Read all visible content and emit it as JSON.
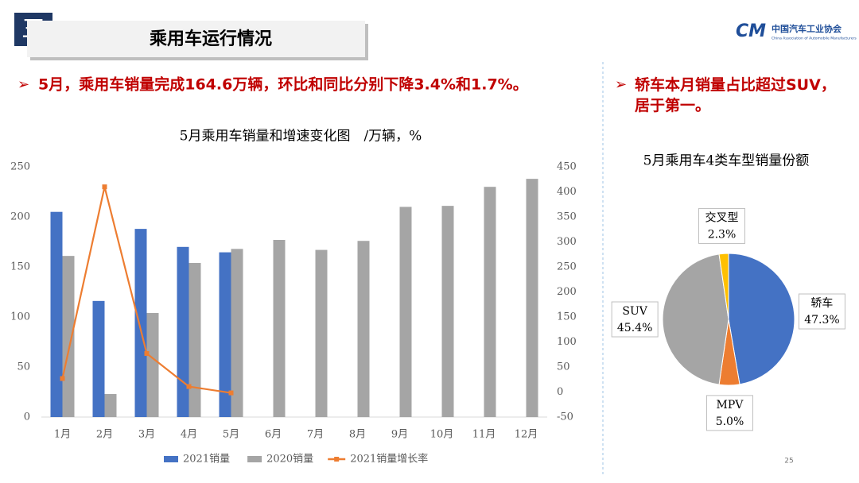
{
  "header": {
    "section": "三",
    "title": "乘用车运行情况",
    "logo_cn": "中国汽车工业协会",
    "logo_en": "China Association of Automobile Manufacturers"
  },
  "bullets": [
    "5月，乘用车销量完成164.6万辆，环比和同比分别下降3.4%和1.7%。",
    "轿车本月销量占比超过SUV，居于第一。"
  ],
  "page_number": "25",
  "chart_data": [
    {
      "type": "combo",
      "title": "5月乘用车销量和增速变化图　/万辆，%",
      "categories": [
        "1月",
        "2月",
        "3月",
        "4月",
        "5月",
        "6月",
        "7月",
        "8月",
        "9月",
        "10月",
        "11月",
        "12月"
      ],
      "series": [
        {
          "name": "2021销量",
          "color": "#4472c4",
          "kind": "bar",
          "values": [
            205,
            116,
            188,
            170,
            164.6,
            null,
            null,
            null,
            null,
            null,
            null,
            null
          ]
        },
        {
          "name": "2020销量",
          "color": "#a5a5a5",
          "kind": "bar",
          "values": [
            161,
            23,
            104,
            154,
            168,
            177,
            167,
            176,
            210,
            211,
            230,
            238
          ]
        },
        {
          "name": "2021销量增长率",
          "color": "#ed7d31",
          "kind": "line",
          "axis": "y2",
          "values": [
            27,
            410,
            77,
            11,
            -1.7,
            null,
            null,
            null,
            null,
            null,
            null,
            null
          ]
        }
      ],
      "ylim": [
        0,
        250
      ],
      "yticks": [
        0,
        50,
        100,
        150,
        200,
        250
      ],
      "y2lim": [
        -50,
        450
      ],
      "y2ticks": [
        -50,
        0,
        50,
        100,
        150,
        200,
        250,
        300,
        350,
        400,
        450
      ],
      "legend": "bottom"
    },
    {
      "type": "pie",
      "title": "5月乘用车4类车型销量份额",
      "categories": [
        "轿车",
        "MPV",
        "SUV",
        "交叉型"
      ],
      "values": [
        47.3,
        5.0,
        45.4,
        2.3
      ],
      "value_labels": [
        "47.3%",
        "5.0%",
        "45.4%",
        "2.3%"
      ],
      "colors": [
        "#4472c4",
        "#ed7d31",
        "#a5a5a5",
        "#ffc000"
      ]
    }
  ]
}
